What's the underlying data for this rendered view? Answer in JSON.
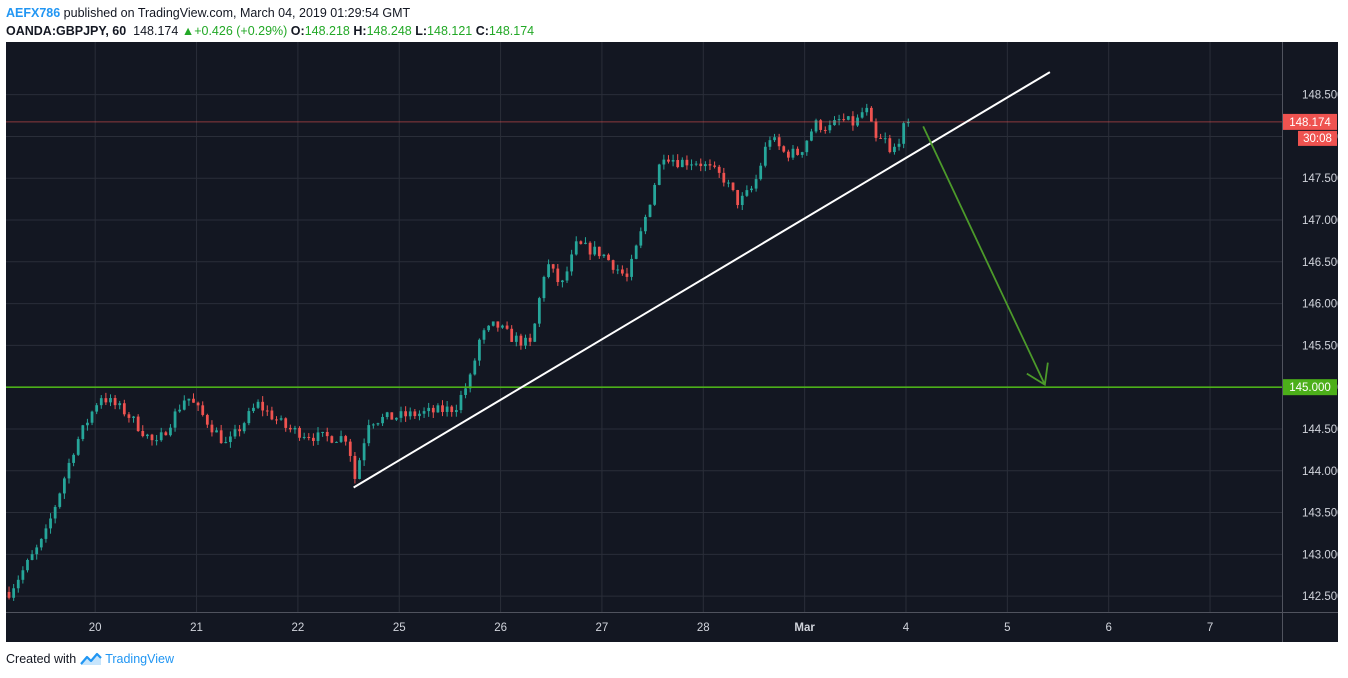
{
  "header": {
    "author": "AEFX786",
    "published_text": " published on TradingView.com, March 04, 2019 01:29:54 GMT",
    "symbol": "OANDA:GBPJPY, 60",
    "last_price": "148.174",
    "change_arrow": "▲",
    "change": "+0.426 (+0.29%)",
    "open_label": "O:",
    "open": "148.218",
    "high_label": "H:",
    "high": "148.248",
    "low_label": "L:",
    "low": "148.121",
    "close_label": "C:",
    "close": "148.174"
  },
  "footer": {
    "created_with": "Created with",
    "brand": "TradingView"
  },
  "colors": {
    "background": "#131722",
    "grid": "#2a2e39",
    "up": "#26a69a",
    "down": "#ef5350",
    "trendline": "#ffffff",
    "support": "#4caf1a",
    "arrow": "#4c9a2a",
    "price_tag": "#ef5350",
    "axis_text": "#d1d4dc"
  },
  "chart_data": {
    "type": "candlestick",
    "symbol": "GBPJPY",
    "interval": "60",
    "y_ticks": [
      "142.500",
      "143.000",
      "143.500",
      "144.000",
      "144.500",
      "145.000",
      "145.500",
      "146.000",
      "146.500",
      "147.000",
      "147.500",
      "148.000",
      "148.500"
    ],
    "ylim": [
      142.31,
      149.13
    ],
    "x_ticks": [
      {
        "label": "20",
        "day": 1
      },
      {
        "label": "21",
        "day": 2
      },
      {
        "label": "22",
        "day": 3
      },
      {
        "label": "25",
        "day": 4
      },
      {
        "label": "26",
        "day": 5
      },
      {
        "label": "27",
        "day": 6
      },
      {
        "label": "28",
        "day": 7
      },
      {
        "label": "Mar",
        "day": 8,
        "bold": true
      },
      {
        "label": "4",
        "day": 9
      },
      {
        "label": "5",
        "day": 10
      },
      {
        "label": "6",
        "day": 11
      },
      {
        "label": "7",
        "day": 12
      }
    ],
    "xlim": [
      0.12,
      12.71
    ],
    "path_points": [
      [
        0.15,
        142.55
      ],
      [
        0.5,
        143.2
      ],
      [
        0.8,
        144.3
      ],
      [
        1.05,
        144.9
      ],
      [
        1.3,
        144.7
      ],
      [
        1.6,
        144.3
      ],
      [
        1.9,
        144.9
      ],
      [
        2.1,
        144.6
      ],
      [
        2.3,
        144.3
      ],
      [
        2.6,
        144.8
      ],
      [
        2.9,
        144.5
      ],
      [
        3.2,
        144.4
      ],
      [
        3.5,
        144.4
      ],
      [
        3.55,
        143.85
      ],
      [
        3.7,
        144.6
      ],
      [
        4.0,
        144.65
      ],
      [
        4.3,
        144.7
      ],
      [
        4.55,
        144.75
      ],
      [
        4.7,
        145.1
      ],
      [
        4.8,
        145.6
      ],
      [
        4.95,
        145.75
      ],
      [
        5.1,
        145.6
      ],
      [
        5.3,
        145.5
      ],
      [
        5.45,
        146.5
      ],
      [
        5.6,
        146.2
      ],
      [
        5.75,
        146.7
      ],
      [
        6.0,
        146.6
      ],
      [
        6.25,
        146.3
      ],
      [
        6.4,
        146.9
      ],
      [
        6.6,
        147.8
      ],
      [
        6.75,
        147.7
      ],
      [
        6.95,
        147.7
      ],
      [
        7.2,
        147.5
      ],
      [
        7.35,
        147.2
      ],
      [
        7.5,
        147.4
      ],
      [
        7.65,
        148.0
      ],
      [
        7.8,
        147.8
      ],
      [
        7.95,
        147.8
      ],
      [
        8.1,
        148.15
      ],
      [
        8.25,
        148.1
      ],
      [
        8.35,
        148.2
      ],
      [
        8.5,
        148.15
      ],
      [
        8.6,
        148.35
      ],
      [
        8.7,
        147.95
      ],
      [
        8.8,
        147.95
      ],
      [
        8.85,
        147.75
      ],
      [
        8.9,
        147.9
      ],
      [
        9.0,
        148.15
      ],
      [
        9.05,
        148.17
      ]
    ],
    "candle_step": 0.0455,
    "last_price": 148.174,
    "last_price_label": "148.174",
    "countdown_label": "30:08",
    "support_level": 145.0,
    "support_label": "145.000",
    "trendline": [
      [
        3.55,
        143.8
      ],
      [
        10.42,
        148.77
      ]
    ],
    "arrow": [
      [
        9.17,
        148.12
      ],
      [
        10.37,
        145.03
      ]
    ]
  }
}
